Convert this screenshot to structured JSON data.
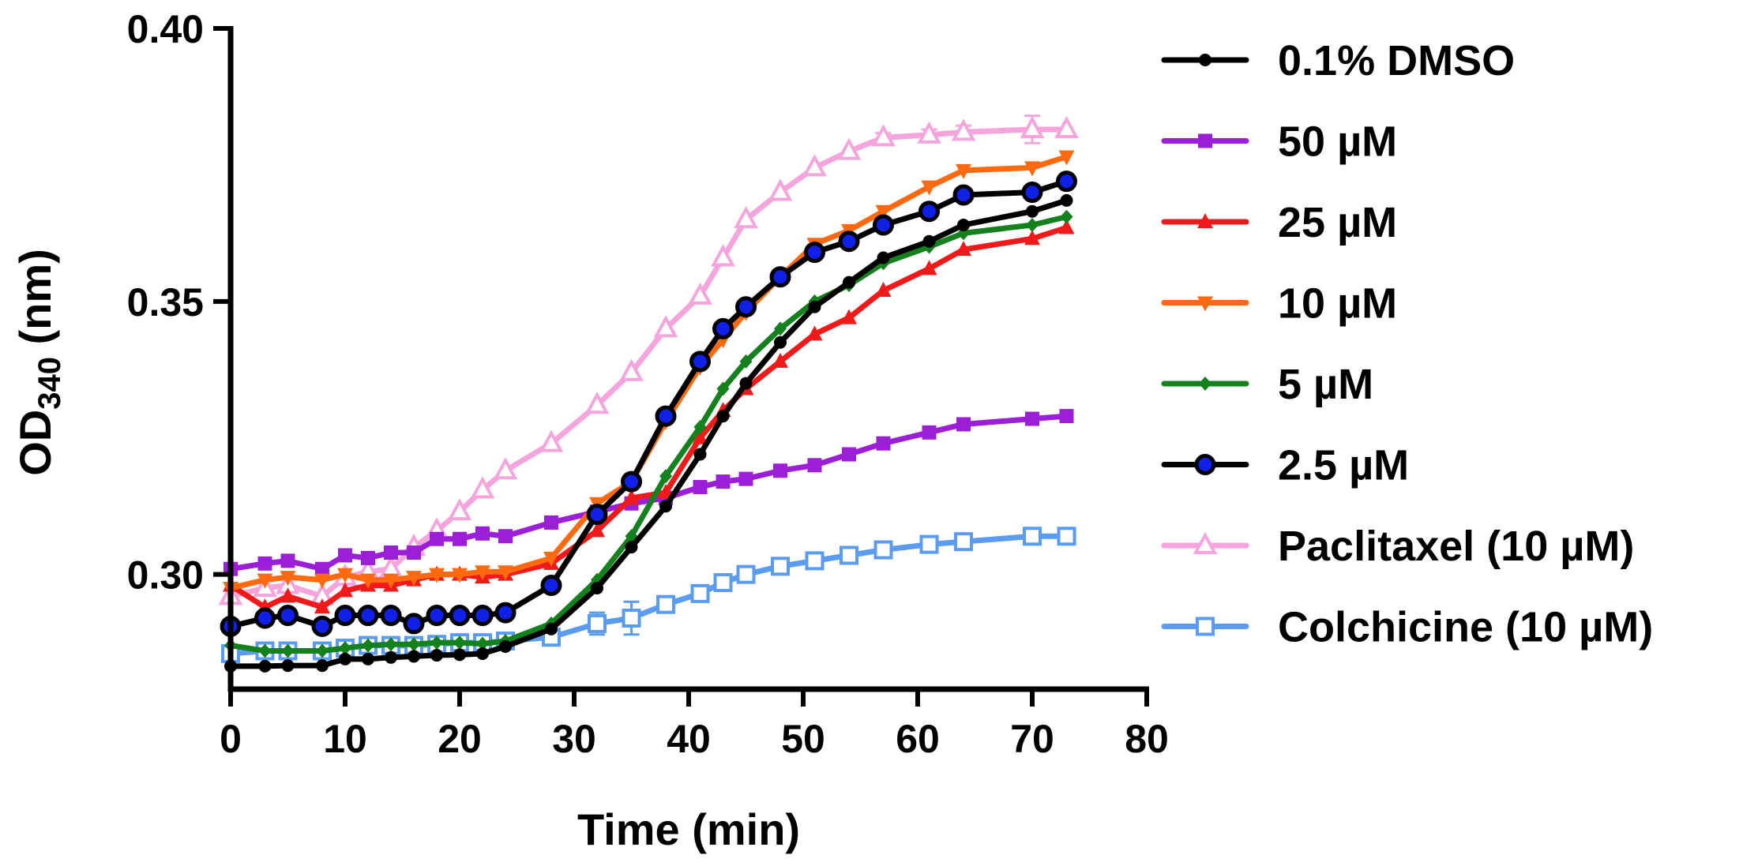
{
  "chart_data": {
    "type": "line",
    "xlabel": "Time (min)",
    "ylabel": {
      "main": "OD",
      "sub": "340",
      "suffix": " (nm)"
    },
    "xlim": [
      0,
      80
    ],
    "ylim": [
      0.28,
      0.4
    ],
    "xticks": [
      0,
      10,
      20,
      30,
      40,
      50,
      60,
      70,
      80
    ],
    "yticks": [
      0.3,
      0.35,
      0.4
    ],
    "ytick_labels": [
      "0.30",
      "0.35",
      "0.40"
    ],
    "grid": false,
    "legend_position": "right",
    "x": [
      0,
      3,
      5,
      8,
      10,
      12,
      14,
      16,
      18,
      20,
      22,
      24,
      28,
      32,
      35,
      38,
      41,
      43,
      45,
      48,
      51,
      54,
      57,
      61,
      64,
      70,
      73
    ],
    "series": [
      {
        "name": "0.1% DMSO",
        "color": "#000000",
        "marker": "circle-small",
        "line_width": 7,
        "values": [
          0.2832,
          0.2832,
          0.2833,
          0.2833,
          0.2845,
          0.2845,
          0.2848,
          0.285,
          0.2852,
          0.2853,
          0.2855,
          0.2868,
          0.29,
          0.2975,
          0.305,
          0.3125,
          0.322,
          0.329,
          0.335,
          0.3425,
          0.349,
          0.3535,
          0.358,
          0.361,
          0.364,
          0.3665,
          0.3685
        ]
      },
      {
        "name": "50 µM",
        "color": "#9b1fd6",
        "marker": "square",
        "line_width": 7,
        "values": [
          0.301,
          0.302,
          0.3025,
          0.301,
          0.3035,
          0.303,
          0.304,
          0.304,
          0.3065,
          0.3065,
          0.3075,
          0.307,
          0.3095,
          0.3115,
          0.313,
          0.314,
          0.316,
          0.317,
          0.3175,
          0.319,
          0.32,
          0.322,
          0.324,
          0.326,
          0.3275,
          0.3285,
          0.329
        ]
      },
      {
        "name": "25 µM",
        "color": "#f01a1a",
        "marker": "triangle-up",
        "line_width": 7,
        "values": [
          0.298,
          0.294,
          0.296,
          0.294,
          0.297,
          0.298,
          0.298,
          0.299,
          0.3,
          0.3,
          0.2995,
          0.3,
          0.302,
          0.308,
          0.314,
          0.315,
          0.325,
          0.33,
          0.334,
          0.339,
          0.344,
          0.347,
          0.352,
          0.356,
          0.3595,
          0.3615,
          0.3635
        ]
      },
      {
        "name": "10 µM",
        "color": "#ff6a10",
        "marker": "triangle-down",
        "line_width": 7,
        "values": [
          0.2975,
          0.299,
          0.2995,
          0.299,
          0.3,
          0.299,
          0.299,
          0.2995,
          0.3,
          0.3,
          0.3005,
          0.3005,
          0.303,
          0.313,
          0.317,
          0.328,
          0.338,
          0.343,
          0.348,
          0.3545,
          0.3605,
          0.363,
          0.3665,
          0.371,
          0.374,
          0.3745,
          0.3765
        ]
      },
      {
        "name": "5 µM",
        "color": "#14811e",
        "marker": "diamond",
        "line_width": 7,
        "values": [
          0.287,
          0.286,
          0.286,
          0.286,
          0.2865,
          0.287,
          0.2872,
          0.2872,
          0.2875,
          0.2875,
          0.2873,
          0.2878,
          0.291,
          0.299,
          0.307,
          0.318,
          0.327,
          0.334,
          0.339,
          0.345,
          0.35,
          0.353,
          0.357,
          0.36,
          0.3625,
          0.364,
          0.3655
        ]
      },
      {
        "name": "2.5 µM",
        "color": "#000000",
        "marker": "circle-blue",
        "marker_fill": "#1020e6",
        "line_width": 7,
        "values": [
          0.2905,
          0.292,
          0.2925,
          0.2905,
          0.2925,
          0.2925,
          0.2925,
          0.291,
          0.2925,
          0.2925,
          0.2925,
          0.293,
          0.298,
          0.311,
          0.317,
          0.329,
          0.339,
          0.345,
          0.349,
          0.3545,
          0.359,
          0.361,
          0.364,
          0.3665,
          0.3695,
          0.37,
          0.372
        ]
      },
      {
        "name": "Paclitaxel (10 µM)",
        "color": "#f4a6dc",
        "marker": "triangle-open",
        "line_width": 7,
        "values": [
          0.296,
          0.2975,
          0.298,
          0.296,
          0.2995,
          0.3005,
          0.301,
          0.305,
          0.308,
          0.3115,
          0.3155,
          0.319,
          0.324,
          0.331,
          0.337,
          0.345,
          0.351,
          0.358,
          0.365,
          0.37,
          0.3745,
          0.3775,
          0.38,
          0.3805,
          0.381,
          0.3815,
          0.3815
        ],
        "errors": [
          0,
          0,
          0,
          0,
          0,
          0,
          0,
          0,
          0,
          0,
          0,
          0,
          0,
          0,
          0,
          0,
          0,
          0,
          0,
          0,
          0,
          0,
          0.0008,
          0.001,
          0.0012,
          0.0025,
          0
        ]
      },
      {
        "name": "Colchicine (10 µM)",
        "color": "#5b9cf0",
        "marker": "square-open",
        "line_width": 7,
        "values": [
          0.2855,
          0.286,
          0.286,
          0.286,
          0.2865,
          0.287,
          0.287,
          0.287,
          0.2872,
          0.2875,
          0.2875,
          0.2878,
          0.2885,
          0.291,
          0.292,
          0.2945,
          0.2965,
          0.2985,
          0.3,
          0.3015,
          0.3025,
          0.3035,
          0.3045,
          0.3055,
          0.306,
          0.307,
          0.307
        ],
        "errors": [
          0,
          0,
          0,
          0,
          0,
          0,
          0,
          0,
          0,
          0,
          0,
          0,
          0.001,
          0.002,
          0.003,
          0.001,
          0,
          0,
          0,
          0,
          0,
          0,
          0,
          0,
          0,
          0,
          0
        ]
      }
    ]
  }
}
